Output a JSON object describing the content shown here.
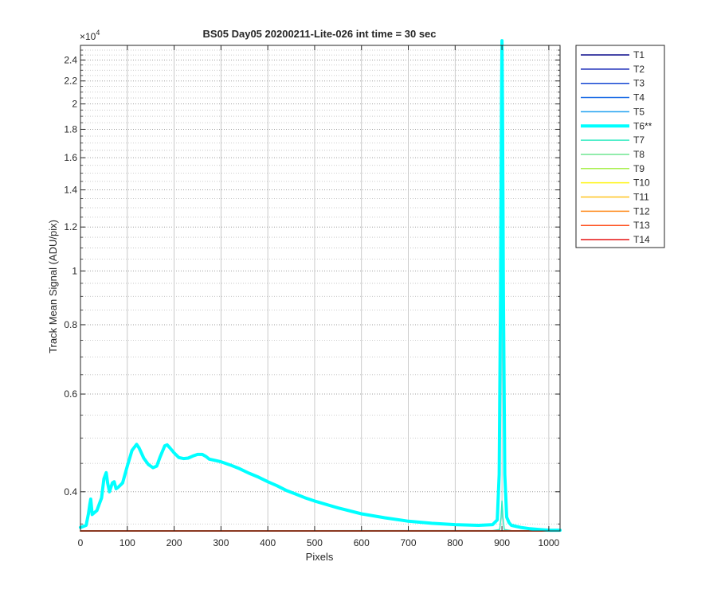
{
  "chart_data": {
    "type": "line",
    "title": "BS05 Day05 20200211-Lite-026 int time = 30 sec",
    "xlabel": "Pixels",
    "ylabel": "Track Mean Signal (ADU/pix)",
    "y_exponent_label": "×10",
    "y_exponent_power": "4",
    "y_scale": "log",
    "grid": true,
    "minor_grid": true,
    "legend_position": "outside-right",
    "xlim": [
      0,
      1024
    ],
    "ylim": [
      3400,
      25500
    ],
    "x_ticks": [
      0,
      100,
      200,
      300,
      400,
      500,
      600,
      700,
      800,
      900,
      1000
    ],
    "x_tick_labels": [
      "0",
      "100",
      "200",
      "300",
      "400",
      "500",
      "600",
      "700",
      "800",
      "900",
      "1000"
    ],
    "y_ticks": [
      4000,
      6000,
      8000,
      10000,
      12000,
      14000,
      16000,
      18000,
      20000,
      22000,
      24000
    ],
    "y_tick_labels": [
      "0.4",
      "0.6",
      "0.8",
      "1",
      "1.2",
      "1.4",
      "1.6",
      "1.8",
      "2",
      "2.2",
      "2.4"
    ],
    "y_minor_ticks": [
      3500,
      4500,
      5000,
      5500,
      6500,
      7000,
      7500,
      8500,
      9000,
      9500,
      10500,
      11000,
      11500,
      12500,
      13000,
      13500,
      14500,
      15000,
      15500,
      16500,
      17000,
      17500,
      18500,
      19000,
      19500,
      20500,
      21000,
      21500,
      22500,
      23000,
      23500,
      24500,
      25000
    ],
    "series": [
      {
        "name": "T1",
        "color": "#0a0a8c",
        "width": 1.5,
        "x": [
          0,
          1024
        ],
        "y": [
          3400,
          3400
        ]
      },
      {
        "name": "T2",
        "color": "#0f21b4",
        "width": 1.5,
        "x": [
          0,
          1024
        ],
        "y": [
          3400,
          3400
        ]
      },
      {
        "name": "T3",
        "color": "#1446d2",
        "width": 1.5,
        "x": [
          0,
          1024
        ],
        "y": [
          3400,
          3400
        ]
      },
      {
        "name": "T4",
        "color": "#1e6ee6",
        "width": 1.5,
        "x": [
          0,
          1024
        ],
        "y": [
          3400,
          3400
        ]
      },
      {
        "name": "T5",
        "color": "#1ea0f0",
        "width": 1.5,
        "x": [
          0,
          1024
        ],
        "y": [
          3400,
          3400
        ]
      },
      {
        "name": "T6**",
        "color": "#00ffff",
        "width": 4,
        "x": [
          0,
          12,
          17,
          20,
          22,
          25,
          35,
          45,
          50,
          55,
          58,
          62,
          68,
          72,
          76,
          80,
          90,
          100,
          110,
          120,
          125,
          135,
          145,
          155,
          163,
          170,
          180,
          185,
          190,
          200,
          210,
          220,
          230,
          240,
          250,
          260,
          268,
          275,
          285,
          300,
          320,
          340,
          360,
          380,
          400,
          420,
          440,
          460,
          480,
          500,
          550,
          600,
          650,
          700,
          750,
          800,
          850,
          880,
          890,
          894,
          897,
          899,
          900,
          901,
          903,
          906,
          910,
          915,
          920,
          940,
          960,
          980,
          1000,
          1024
        ],
        "y": [
          3450,
          3480,
          3650,
          3800,
          3880,
          3640,
          3700,
          3900,
          4220,
          4330,
          4150,
          4000,
          4150,
          4170,
          4050,
          4070,
          4150,
          4450,
          4750,
          4870,
          4800,
          4600,
          4480,
          4420,
          4450,
          4620,
          4840,
          4860,
          4810,
          4700,
          4610,
          4590,
          4600,
          4640,
          4670,
          4670,
          4630,
          4580,
          4560,
          4530,
          4470,
          4400,
          4320,
          4250,
          4170,
          4100,
          4020,
          3960,
          3900,
          3850,
          3740,
          3650,
          3590,
          3540,
          3510,
          3490,
          3480,
          3490,
          3560,
          4300,
          9000,
          20000,
          26000,
          20000,
          9000,
          4300,
          3600,
          3520,
          3480,
          3450,
          3430,
          3420,
          3410,
          3410
        ]
      },
      {
        "name": "T7",
        "color": "#36ebc3",
        "width": 1.5,
        "x": [
          0,
          880,
          895,
          898,
          900,
          902,
          905,
          920,
          1024
        ],
        "y": [
          3400,
          3405,
          3420,
          3600,
          3850,
          3600,
          3420,
          3405,
          3400
        ]
      },
      {
        "name": "T8",
        "color": "#6ee691",
        "width": 1.5,
        "x": [
          0,
          1024
        ],
        "y": [
          3400,
          3400
        ]
      },
      {
        "name": "T9",
        "color": "#aaf050",
        "width": 1.5,
        "x": [
          0,
          1024
        ],
        "y": [
          3400,
          3400
        ]
      },
      {
        "name": "T10",
        "color": "#fff514",
        "width": 1.5,
        "x": [
          0,
          1024
        ],
        "y": [
          3400,
          3400
        ]
      },
      {
        "name": "T11",
        "color": "#ffc31e",
        "width": 1.5,
        "x": [
          0,
          1024
        ],
        "y": [
          3400,
          3400
        ]
      },
      {
        "name": "T12",
        "color": "#ff8c1e",
        "width": 1.5,
        "x": [
          0,
          1024
        ],
        "y": [
          3400,
          3400
        ]
      },
      {
        "name": "T13",
        "color": "#ff501e",
        "width": 1.5,
        "x": [
          0,
          1024
        ],
        "y": [
          3400,
          3400
        ]
      },
      {
        "name": "T14",
        "color": "#e61414",
        "width": 1.5,
        "x": [
          0,
          1024
        ],
        "y": [
          3400,
          3400
        ]
      }
    ]
  }
}
